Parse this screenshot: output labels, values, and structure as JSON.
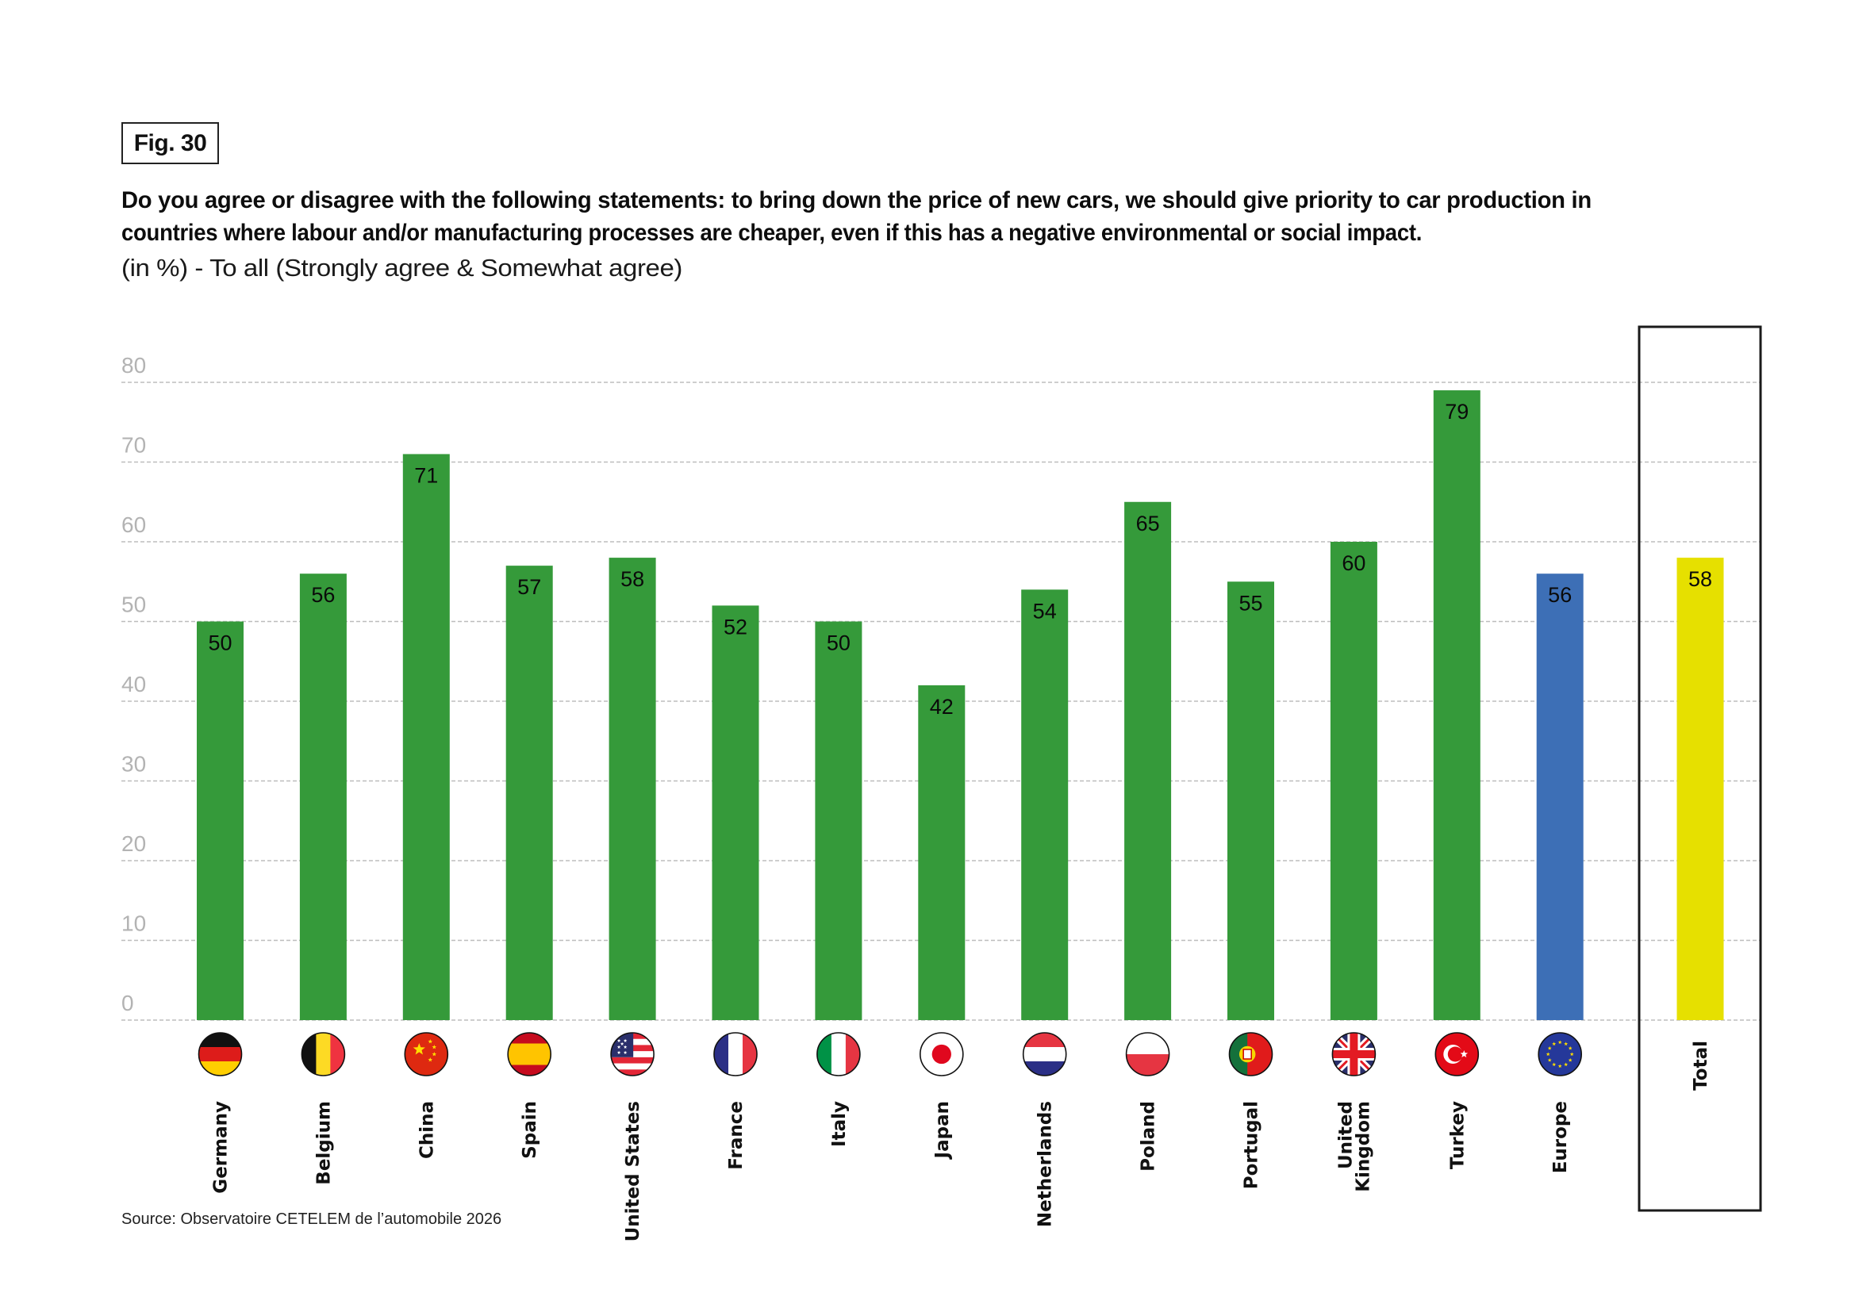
{
  "figure": {
    "label": "Fig. 30",
    "title_lines": [
      "Do you agree or disagree with the following statements: to bring down the price of new cars, we should give priority to car production in",
      "countries where labour and/or manufacturing processes are cheaper, even if this has a negative environmental or social impact."
    ],
    "subtitle": "(in %) - To all (Strongly agree & Somewhat agree)",
    "source": "Source: Observatoire CETELEM de l’automobile 2026"
  },
  "colors": {
    "country": "#359a3a",
    "europe": "#3d6fb6",
    "total": "#e6e000",
    "grid": "#bdbdbd",
    "tick": "#b3b3b3"
  },
  "chart_data": {
    "type": "bar",
    "title": "Do you agree or disagree with the following statements: to bring down the price of new cars, we should give priority to car production in countries where labour and/or manufacturing processes are cheaper, even if this has a negative environmental or social impact.",
    "subtitle": "(in %) - To all (Strongly agree & Somewhat agree)",
    "xlabel": "",
    "ylabel": "",
    "ylim": [
      0,
      80
    ],
    "yticks": [
      0,
      10,
      20,
      30,
      40,
      50,
      60,
      70,
      80
    ],
    "grid": true,
    "categories": [
      {
        "label": [
          "Germany"
        ],
        "flag": "germany-flag",
        "value": 50,
        "group": "country"
      },
      {
        "label": [
          "Belgium"
        ],
        "flag": "belgium-flag",
        "value": 56,
        "group": "country"
      },
      {
        "label": [
          "China"
        ],
        "flag": "china-flag",
        "value": 71,
        "group": "country"
      },
      {
        "label": [
          "Spain"
        ],
        "flag": "spain-flag",
        "value": 57,
        "group": "country"
      },
      {
        "label": [
          "United States"
        ],
        "flag": "united-states-flag",
        "value": 58,
        "group": "country"
      },
      {
        "label": [
          "France"
        ],
        "flag": "france-flag",
        "value": 52,
        "group": "country"
      },
      {
        "label": [
          "Italy"
        ],
        "flag": "italy-flag",
        "value": 50,
        "group": "country"
      },
      {
        "label": [
          "Japan"
        ],
        "flag": "japan-flag",
        "value": 42,
        "group": "country"
      },
      {
        "label": [
          "Netherlands"
        ],
        "flag": "netherlands-flag",
        "value": 54,
        "group": "country"
      },
      {
        "label": [
          "Poland"
        ],
        "flag": "poland-flag",
        "value": 65,
        "group": "country"
      },
      {
        "label": [
          "Portugal"
        ],
        "flag": "portugal-flag",
        "value": 55,
        "group": "country"
      },
      {
        "label": [
          "United",
          "Kingdom"
        ],
        "flag": "united-kingdom-flag",
        "value": 60,
        "group": "country"
      },
      {
        "label": [
          "Turkey"
        ],
        "flag": "turkey-flag",
        "value": 79,
        "group": "country"
      },
      {
        "label": [
          "Europe"
        ],
        "flag": "europe-flag",
        "value": 56,
        "group": "europe"
      },
      {
        "label": [
          "Total"
        ],
        "flag": null,
        "value": 58,
        "group": "total"
      }
    ]
  }
}
